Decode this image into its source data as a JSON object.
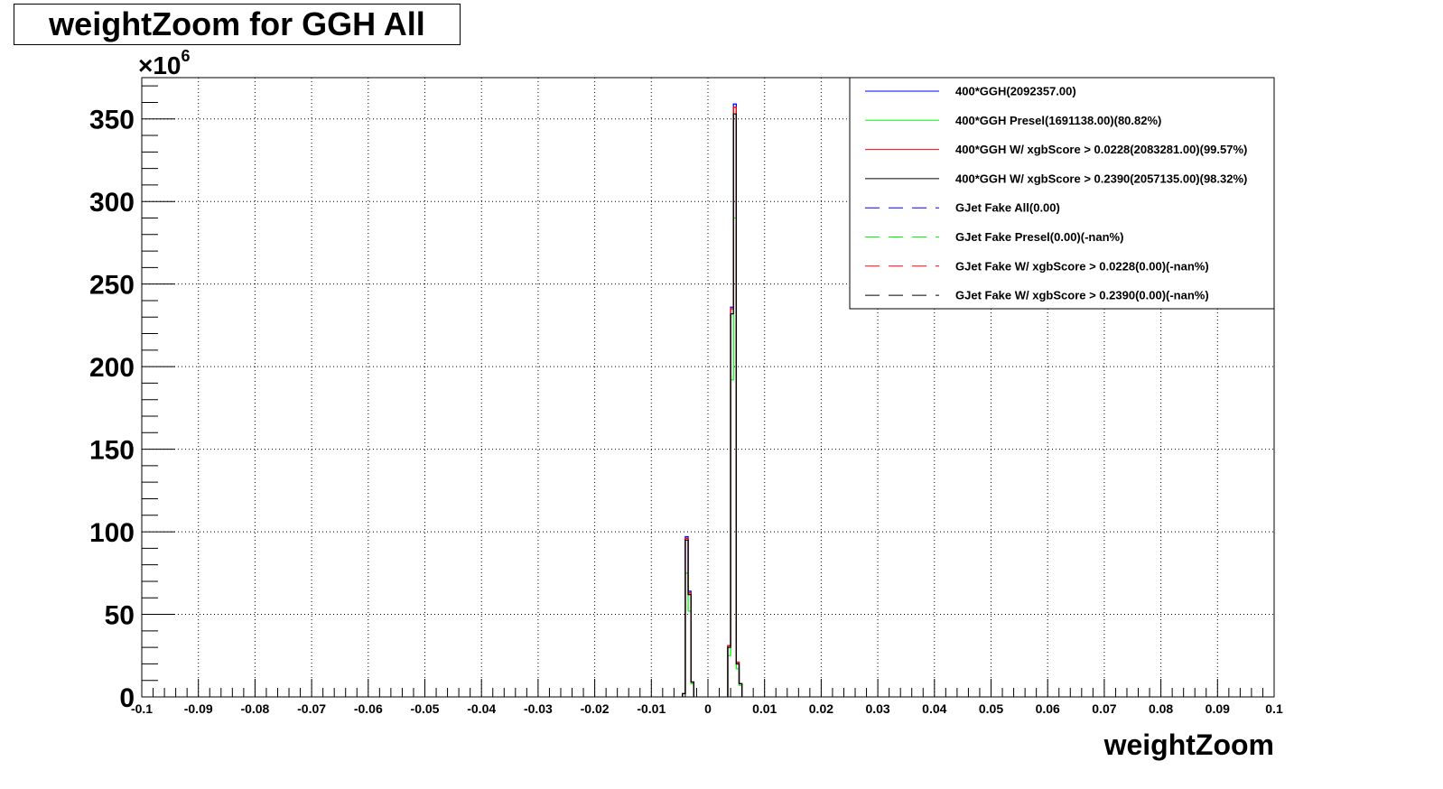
{
  "chart_data": {
    "type": "histogram",
    "title": "weightZoom for GGH All",
    "xlabel": "weightZoom",
    "ylabel": "",
    "y_multiplier_label": "×10",
    "y_multiplier_exp": "6",
    "xlim": [
      -0.1,
      0.1
    ],
    "ylim": [
      0,
      375
    ],
    "grid": true,
    "legend_position": "top-right",
    "x_ticks": [
      "-0.1",
      "-0.09",
      "-0.08",
      "-0.07",
      "-0.06",
      "-0.05",
      "-0.04",
      "-0.03",
      "-0.02",
      "-0.01",
      "0",
      "0.01",
      "0.02",
      "0.03",
      "0.04",
      "0.05",
      "0.06",
      "0.07",
      "0.08",
      "0.09",
      "0.1"
    ],
    "y_ticks": [
      "0",
      "50",
      "100",
      "150",
      "200",
      "250",
      "300",
      "350"
    ],
    "bin_width": 0.0005,
    "series": [
      {
        "name": "400*GGH(2092357.00)",
        "color": "#0000ff",
        "dash": "solid",
        "bins": [
          [
            -0.0045,
            2
          ],
          [
            -0.004,
            97
          ],
          [
            -0.0035,
            64
          ],
          [
            -0.003,
            9
          ],
          [
            0.0035,
            31
          ],
          [
            0.004,
            236
          ],
          [
            0.0045,
            359
          ],
          [
            0.005,
            21
          ],
          [
            0.0055,
            8
          ]
        ]
      },
      {
        "name": "400*GGH Presel(1691138.00)(80.82%)",
        "color": "#00ff00",
        "dash": "solid",
        "bins": [
          [
            -0.0045,
            2
          ],
          [
            -0.004,
            75
          ],
          [
            -0.0035,
            52
          ],
          [
            -0.003,
            8
          ],
          [
            0.0035,
            25
          ],
          [
            0.004,
            192
          ],
          [
            0.0045,
            290
          ],
          [
            0.005,
            17
          ],
          [
            0.0055,
            7
          ]
        ]
      },
      {
        "name": "400*GGH W/ xgbScore > 0.0228(2083281.00)(99.57%)",
        "color": "#ff0000",
        "dash": "solid",
        "bins": [
          [
            -0.0045,
            2
          ],
          [
            -0.004,
            96
          ],
          [
            -0.0035,
            63
          ],
          [
            -0.003,
            9
          ],
          [
            0.0035,
            31
          ],
          [
            0.004,
            235
          ],
          [
            0.0045,
            357
          ],
          [
            0.005,
            21
          ],
          [
            0.0055,
            8
          ]
        ]
      },
      {
        "name": "400*GGH W/ xgbScore > 0.2390(2057135.00)(98.32%)",
        "color": "#000000",
        "dash": "solid",
        "bins": [
          [
            -0.0045,
            2
          ],
          [
            -0.004,
            95
          ],
          [
            -0.0035,
            62
          ],
          [
            -0.003,
            9
          ],
          [
            0.0035,
            30
          ],
          [
            0.004,
            232
          ],
          [
            0.0045,
            353
          ],
          [
            0.005,
            20
          ],
          [
            0.0055,
            8
          ]
        ]
      },
      {
        "name": "GJet Fake All(0.00)",
        "color": "#0000ff",
        "dash": "dashed",
        "bins": []
      },
      {
        "name": "GJet Fake Presel(0.00)(-nan%)",
        "color": "#00ff00",
        "dash": "dashed",
        "bins": []
      },
      {
        "name": "GJet Fake W/ xgbScore > 0.0228(0.00)(-nan%)",
        "color": "#ff0000",
        "dash": "dashed",
        "bins": []
      },
      {
        "name": "GJet Fake W/ xgbScore > 0.2390(0.00)(-nan%)",
        "color": "#000000",
        "dash": "dashed",
        "bins": []
      }
    ]
  }
}
